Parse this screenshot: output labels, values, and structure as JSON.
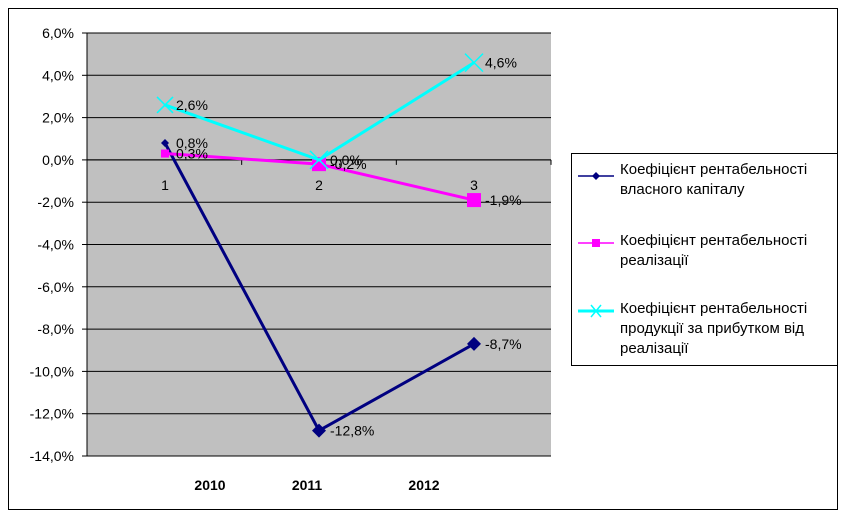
{
  "chart_data": {
    "type": "line",
    "categories": [
      "1",
      "2",
      "3"
    ],
    "years": [
      "2010",
      "2011",
      "2012"
    ],
    "ylim": [
      -14,
      6
    ],
    "yticks": [
      "6,0%",
      "4,0%",
      "2,0%",
      "0,0%",
      "-2,0%",
      "-4,0%",
      "-6,0%",
      "-8,0%",
      "-10,0%",
      "-12,0%",
      "-14,0%"
    ],
    "grid": true,
    "plot_background": "#c0c0c0",
    "legend_position": "right",
    "series": [
      {
        "name": "Коефіцієнт рентабельності власного капіталу",
        "legend_lines": [
          "Коефіцієнт рентабельності",
          "власного капіталу"
        ],
        "values": [
          0.8,
          -12.8,
          -8.7
        ],
        "labels": [
          "0,8%",
          "-12,8%",
          "-8,7%"
        ],
        "color": "#000080",
        "marker": "diamond"
      },
      {
        "name": "Коефіцієнт рентабельності реалізації",
        "legend_lines": [
          "Коефіцієнт рентабельності",
          "реалізації"
        ],
        "values": [
          0.3,
          -0.2,
          -1.9
        ],
        "labels": [
          "0,3%",
          "-0,2%",
          "-1,9%"
        ],
        "color": "#ff00ff",
        "marker": "square"
      },
      {
        "name": "Коефіцієнт рентабельності продукції за прибутком від реалізації",
        "legend_lines": [
          "Коефіцієнт рентабельності",
          "продукції за прибутком від",
          "реалізації"
        ],
        "values": [
          2.6,
          0.0,
          4.6
        ],
        "labels": [
          "2,6%",
          "0,0%",
          "4,6%"
        ],
        "color": "#00ffff",
        "marker": "x"
      }
    ]
  }
}
